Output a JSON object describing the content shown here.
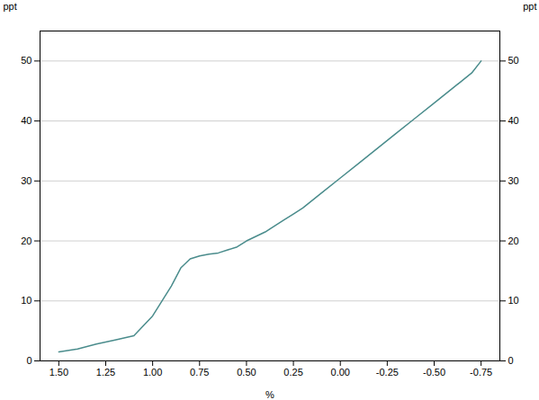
{
  "chart_data": {
    "type": "line",
    "xlabel": "%",
    "ylabel": "ppt",
    "y2label": "ppt",
    "x": [
      1.5,
      1.4,
      1.3,
      1.2,
      1.1,
      1.0,
      0.9,
      0.85,
      0.8,
      0.75,
      0.7,
      0.65,
      0.6,
      0.55,
      0.5,
      0.4,
      0.3,
      0.25,
      0.2,
      0.1,
      0.0,
      -0.1,
      -0.2,
      -0.3,
      -0.4,
      -0.5,
      -0.6,
      -0.7,
      -0.75
    ],
    "values": [
      1.5,
      2.0,
      2.8,
      3.5,
      4.2,
      7.5,
      12.5,
      15.5,
      17.0,
      17.5,
      17.8,
      18.0,
      18.5,
      19.0,
      20.0,
      21.5,
      23.5,
      24.5,
      25.5,
      28.0,
      30.5,
      33.0,
      35.5,
      38.0,
      40.5,
      43.0,
      45.5,
      48.0,
      50.0
    ],
    "color": "#4a8c8c",
    "xlim": [
      1.6,
      -0.85
    ],
    "xticks": [
      {
        "value": 1.5,
        "label": "1.50"
      },
      1.25,
      {
        "value": 1.0,
        "label": "1.00"
      },
      0.75,
      {
        "value": 0.5,
        "label": "0.50"
      },
      0.25,
      {
        "value": 0,
        "label": "0.00"
      },
      -0.25,
      {
        "value": -0.5,
        "label": "-0.50"
      },
      -0.75
    ],
    "ylim": [
      0,
      55
    ],
    "yticks": [
      0,
      10,
      20,
      30,
      40,
      50
    ],
    "grid": true
  }
}
